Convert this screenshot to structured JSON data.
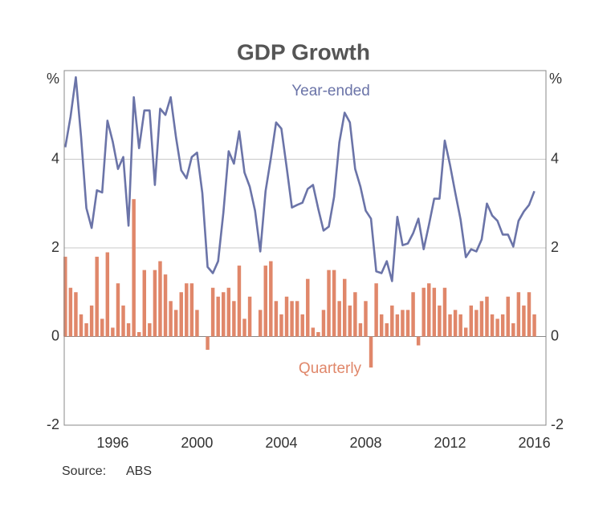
{
  "chart_data": {
    "type": "bar-line",
    "title": "GDP Growth",
    "y_unit": "%",
    "source_label": "Source:",
    "source": "ABS",
    "x": [
      1993.75,
      1994,
      1994.25,
      1994.5,
      1994.75,
      1995,
      1995.25,
      1995.5,
      1995.75,
      1996,
      1996.25,
      1996.5,
      1996.75,
      1997,
      1997.25,
      1997.5,
      1997.75,
      1998,
      1998.25,
      1998.5,
      1998.75,
      1999,
      1999.25,
      1999.5,
      1999.75,
      2000,
      2000.25,
      2000.5,
      2000.75,
      2001,
      2001.25,
      2001.5,
      2001.75,
      2002,
      2002.25,
      2002.5,
      2002.75,
      2003,
      2003.25,
      2003.5,
      2003.75,
      2004,
      2004.25,
      2004.5,
      2004.75,
      2005,
      2005.25,
      2005.5,
      2005.75,
      2006,
      2006.25,
      2006.5,
      2006.75,
      2007,
      2007.25,
      2007.5,
      2007.75,
      2008,
      2008.25,
      2008.5,
      2008.75,
      2009,
      2009.25,
      2009.5,
      2009.75,
      2010,
      2010.25,
      2010.5,
      2010.75,
      2011,
      2011.25,
      2011.5,
      2011.75,
      2012,
      2012.25,
      2012.5,
      2012.75,
      2013,
      2013.25,
      2013.5,
      2013.75,
      2014,
      2014.25,
      2014.5,
      2014.75,
      2015,
      2015.25,
      2015.5,
      2015.75,
      2016
    ],
    "series": [
      {
        "name": "Year-ended",
        "type": "line",
        "color": "#6b74a8",
        "values": [
          4.27,
          4.96,
          5.85,
          4.5,
          2.9,
          2.45,
          3.3,
          3.25,
          4.87,
          4.4,
          3.78,
          4.05,
          2.5,
          5.4,
          4.25,
          5.1,
          5.1,
          3.42,
          5.14,
          5.0,
          5.4,
          4.5,
          3.75,
          3.57,
          4.05,
          4.15,
          3.24,
          1.57,
          1.43,
          1.7,
          2.8,
          4.18,
          3.9,
          4.63,
          3.7,
          3.38,
          2.84,
          1.92,
          3.28,
          4.02,
          4.83,
          4.69,
          3.82,
          2.91,
          2.97,
          3.02,
          3.33,
          3.42,
          2.88,
          2.39,
          2.48,
          3.15,
          4.38,
          5.05,
          4.83,
          3.78,
          3.38,
          2.84,
          2.66,
          1.47,
          1.43,
          1.7,
          1.25,
          2.7,
          2.06,
          2.1,
          2.33,
          2.66,
          1.97,
          2.52,
          3.11,
          3.11,
          4.42,
          3.87,
          3.24,
          2.64,
          1.79,
          1.97,
          1.92,
          2.19,
          3.0,
          2.73,
          2.61,
          2.3,
          2.3,
          2.03,
          2.61,
          2.82,
          2.97,
          3.28
        ]
      },
      {
        "name": "Quarterly",
        "type": "bar",
        "color": "#e0876a",
        "values": [
          1.8,
          1.1,
          1.0,
          0.5,
          0.3,
          0.7,
          1.8,
          0.4,
          1.9,
          0.2,
          1.2,
          0.7,
          0.3,
          3.1,
          0.1,
          1.5,
          0.3,
          1.5,
          1.7,
          1.4,
          0.8,
          0.6,
          1.0,
          1.2,
          1.2,
          0.6,
          0.0,
          -0.3,
          1.1,
          0.9,
          1.0,
          1.1,
          0.8,
          1.6,
          0.4,
          0.9,
          0.0,
          0.6,
          1.6,
          1.7,
          0.8,
          0.5,
          0.9,
          0.8,
          0.8,
          0.5,
          1.3,
          0.2,
          0.1,
          0.6,
          1.5,
          1.5,
          0.8,
          1.3,
          0.7,
          1.0,
          0.3,
          0.8,
          -0.7,
          1.2,
          0.5,
          0.3,
          0.7,
          0.5,
          0.6,
          0.6,
          1.0,
          -0.2,
          1.1,
          1.2,
          1.1,
          0.7,
          1.1,
          0.5,
          0.6,
          0.5,
          0.2,
          0.7,
          0.6,
          0.8,
          0.9,
          0.5,
          0.4,
          0.5,
          0.9,
          0.3,
          1.0,
          0.7,
          1.0,
          0.5
        ]
      }
    ],
    "xlim": [
      1993.7,
      2016.55
    ],
    "xticks": [
      1996,
      2000,
      2004,
      2008,
      2012,
      2016
    ],
    "ylim": [
      -2,
      6
    ],
    "yticks": [
      -2,
      0,
      2,
      4
    ],
    "grid": true
  }
}
